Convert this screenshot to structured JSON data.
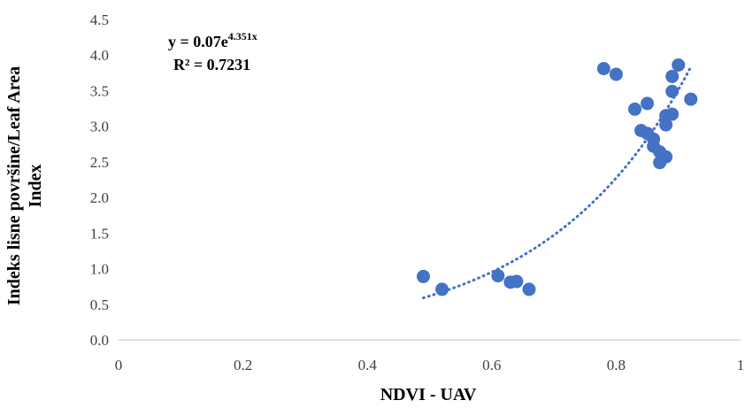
{
  "chart_data": {
    "type": "scatter",
    "title": "",
    "xlabel": "NDVI - UAV",
    "ylabel_lines": [
      "Indeks lisne površine/Leaf Area",
      "Index"
    ],
    "xlim": [
      0,
      1
    ],
    "ylim": [
      0,
      4.5
    ],
    "x_ticks": [
      0,
      0.2,
      0.4,
      0.6,
      0.8,
      1
    ],
    "x_tick_labels": [
      "0",
      "0.2",
      "0.4",
      "0.6",
      "0.8",
      "1"
    ],
    "y_ticks": [
      0,
      0.5,
      1,
      1.5,
      2,
      2.5,
      3,
      3.5,
      4,
      4.5
    ],
    "y_tick_labels": [
      "0.0",
      "0.5",
      "1.0",
      "1.5",
      "2.0",
      "2.5",
      "3.0",
      "3.5",
      "4.0",
      "4.5"
    ],
    "grid": false,
    "series": [
      {
        "color": "#4472C4",
        "points": [
          {
            "x": 0.49,
            "y": 0.89
          },
          {
            "x": 0.52,
            "y": 0.71
          },
          {
            "x": 0.61,
            "y": 0.9
          },
          {
            "x": 0.63,
            "y": 0.81
          },
          {
            "x": 0.64,
            "y": 0.82
          },
          {
            "x": 0.66,
            "y": 0.71
          },
          {
            "x": 0.78,
            "y": 3.81
          },
          {
            "x": 0.8,
            "y": 3.73
          },
          {
            "x": 0.83,
            "y": 3.24
          },
          {
            "x": 0.84,
            "y": 2.94
          },
          {
            "x": 0.85,
            "y": 3.32
          },
          {
            "x": 0.85,
            "y": 2.9
          },
          {
            "x": 0.86,
            "y": 2.82
          },
          {
            "x": 0.86,
            "y": 2.72
          },
          {
            "x": 0.87,
            "y": 2.64
          },
          {
            "x": 0.87,
            "y": 2.49
          },
          {
            "x": 0.88,
            "y": 2.57
          },
          {
            "x": 0.88,
            "y": 3.02
          },
          {
            "x": 0.88,
            "y": 3.15
          },
          {
            "x": 0.89,
            "y": 3.17
          },
          {
            "x": 0.89,
            "y": 3.49
          },
          {
            "x": 0.89,
            "y": 3.7
          },
          {
            "x": 0.9,
            "y": 3.86
          },
          {
            "x": 0.92,
            "y": 3.38
          }
        ]
      }
    ],
    "trendline": {
      "type": "exponential",
      "a": 0.07,
      "b": 4.351,
      "x_range": [
        0.49,
        0.92
      ],
      "color": "#4472C4",
      "style": "dotted"
    },
    "annotation": {
      "eq_prefix": "y = 0.07e",
      "eq_exponent": "4.351x",
      "r2": "R² = 0.7231"
    }
  }
}
